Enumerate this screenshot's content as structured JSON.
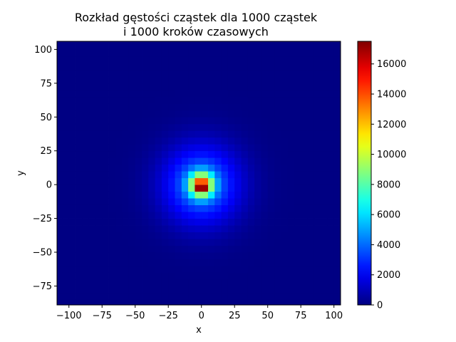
{
  "chart_data": {
    "type": "heatmap",
    "title": "Rozkład gęstości cząstek dla 1000 cząstek",
    "subtitle": "i 1000 kroków czasowych",
    "xlabel": "x",
    "ylabel": "y",
    "xlim": [
      -109,
      105
    ],
    "ylim": [
      -89,
      106
    ],
    "x_ticks": [
      -100,
      -75,
      -50,
      -25,
      0,
      25,
      50,
      75,
      100
    ],
    "x_tick_labels": [
      "−100",
      "−75",
      "−50",
      "−25",
      "0",
      "25",
      "50",
      "75",
      "100"
    ],
    "y_ticks": [
      -75,
      -50,
      -25,
      0,
      25,
      50,
      75,
      100
    ],
    "y_tick_labels": [
      "−75",
      "−50",
      "−25",
      "0",
      "25",
      "50",
      "75",
      "100"
    ],
    "bin_width": 5,
    "colormap": "jet",
    "colorbar": {
      "vmin": 0,
      "vmax": 17500,
      "ticks": [
        0,
        2000,
        4000,
        6000,
        8000,
        10000,
        12000,
        14000,
        16000
      ],
      "tick_labels": [
        "0",
        "2000",
        "4000",
        "6000",
        "8000",
        "10000",
        "12000",
        "14000",
        "16000"
      ]
    },
    "peak": {
      "x": 0,
      "y": -2,
      "value": 17000
    },
    "grid": false
  }
}
